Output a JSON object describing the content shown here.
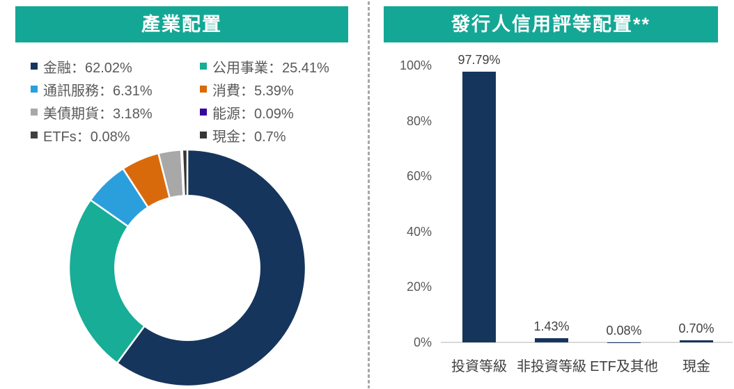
{
  "page": {
    "accent_teal": "#14A795",
    "navy": "#16355C",
    "divider_color": "#A8A8A8",
    "axis_line_color": "#D9D9D9",
    "text_gray": "#595959",
    "text_dark": "#404040"
  },
  "left_panel": {
    "title": "產業配置",
    "legend_separator": "：",
    "legend": [
      {
        "label": "金融",
        "value": "62.02%",
        "color": "#16355C"
      },
      {
        "label": "公用事業",
        "value": "25.41%",
        "color": "#17AD96"
      },
      {
        "label": "通訊服務",
        "value": "6.31%",
        "color": "#2B9FDC"
      },
      {
        "label": "消費",
        "value": "5.39%",
        "color": "#D96A0C"
      },
      {
        "label": "美債期貨",
        "value": "3.18%",
        "color": "#A8A8A8"
      },
      {
        "label": "能源",
        "value": "0.09%",
        "color": "#36089B"
      },
      {
        "label": "ETFs",
        "value": "0.08%",
        "color": "#404040"
      },
      {
        "label": "現金",
        "value": "0.7%",
        "color": "#363636"
      }
    ]
  },
  "right_panel": {
    "title": "發行人信用評等配置**"
  },
  "chart_data": [
    {
      "type": "pie",
      "subtype": "donut",
      "title": "產業配置",
      "labels": [
        "金融",
        "公用事業",
        "通訊服務",
        "消費",
        "美債期貨",
        "能源",
        "ETFs",
        "現金"
      ],
      "values": [
        62.02,
        25.41,
        6.31,
        5.39,
        3.18,
        0.09,
        0.08,
        0.7
      ],
      "colors": [
        "#16355C",
        "#17AD96",
        "#2B9FDC",
        "#D96A0C",
        "#A8A8A8",
        "#36089B",
        "#404040",
        "#363636"
      ],
      "start_angle": "top",
      "direction": "clockwise",
      "inner_radius_ratio": 0.61,
      "slice_gap_color": "#FFFFFF",
      "legend_position": "top"
    },
    {
      "type": "bar",
      "title": "發行人信用評等配置**",
      "categories": [
        "投資等級",
        "非投資等級",
        "ETF及其他",
        "現金"
      ],
      "values": [
        97.79,
        1.43,
        0.08,
        0.7
      ],
      "value_labels": [
        "97.79%",
        "1.43%",
        "0.08%",
        "0.70%"
      ],
      "bar_color": "#16355C",
      "ylim": [
        0,
        100
      ],
      "yticks": [
        100,
        80,
        60,
        40,
        20,
        0
      ],
      "ytick_labels": [
        "100%",
        "80%",
        "60%",
        "40%",
        "20%",
        "0%"
      ],
      "grid": "off",
      "legend": "none"
    }
  ]
}
